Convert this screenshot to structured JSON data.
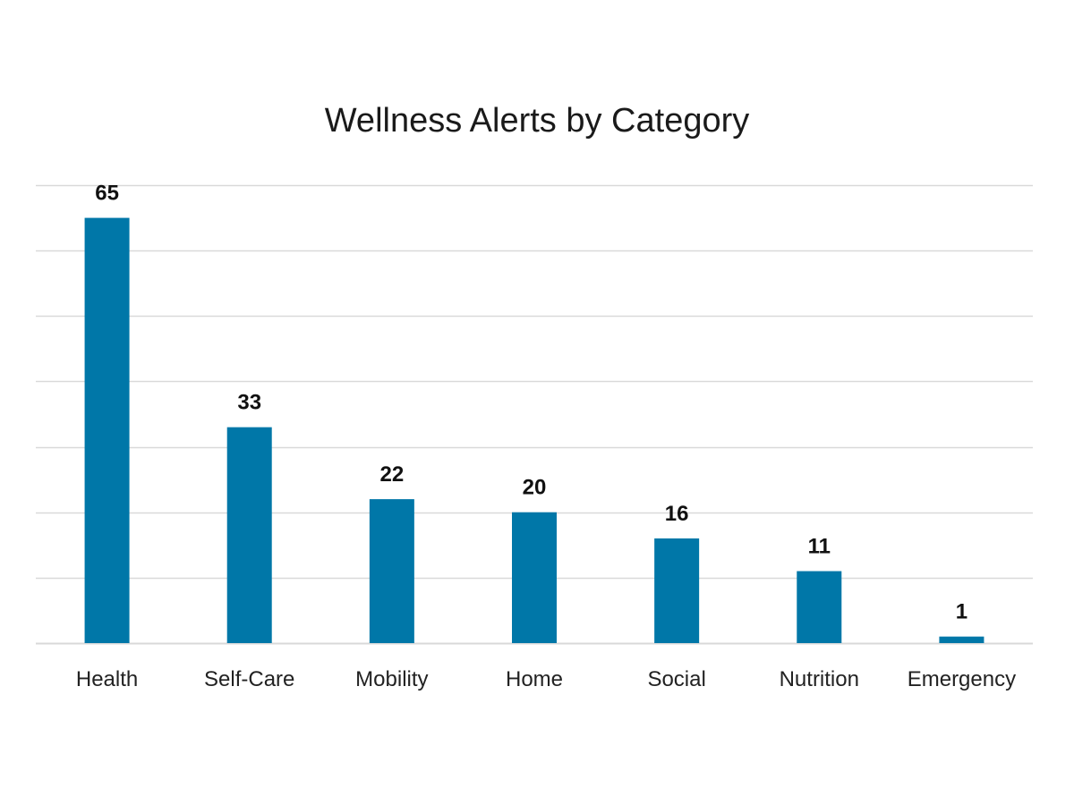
{
  "chart_data": {
    "type": "bar",
    "title": "Wellness Alerts by Category",
    "categories": [
      "Health",
      "Self-Care",
      "Mobility",
      "Home",
      "Social",
      "Nutrition",
      "Emergency"
    ],
    "values": [
      65,
      33,
      22,
      20,
      16,
      11,
      1
    ],
    "ylim": [
      0,
      70
    ],
    "ytick_step": 10,
    "grid": true,
    "y_axis_labels_shown": false,
    "data_labels_shown": true,
    "legend": "none",
    "bar_color": "#0077A8",
    "grid_color": "#D9D9D9"
  }
}
